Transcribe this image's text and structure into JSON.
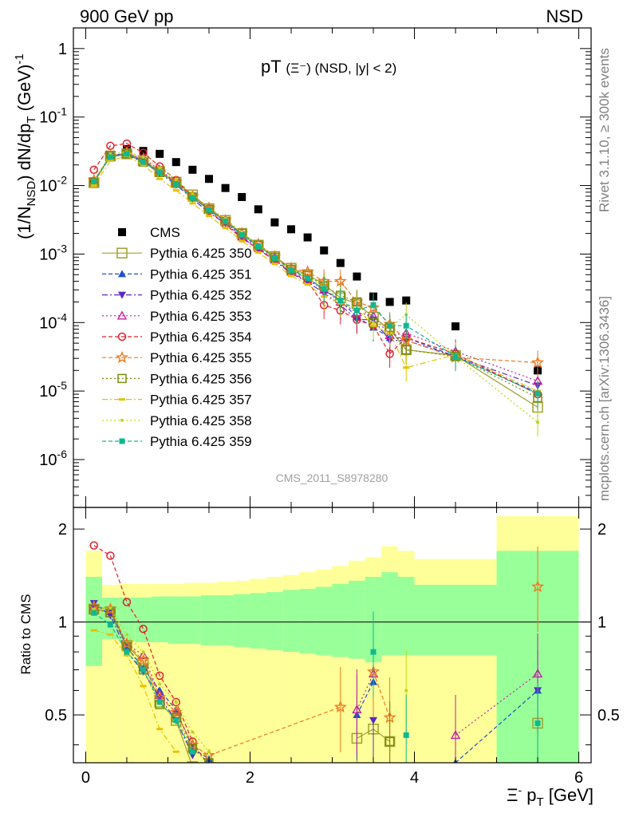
{
  "header": {
    "left": "900 GeV pp",
    "right": "NSD"
  },
  "plot_title": {
    "main": "pT",
    "sub": "(Ξ⁻) (NSD, |y| < 2)"
  },
  "side_labels": {
    "rivet": "Rivet 3.1.10, ≥ 300k events",
    "mcplots": "mcplots.cern.ch [arXiv:1306.3436]"
  },
  "watermark": "CMS_2011_S8978280",
  "ratio_ylabel": "Ratio to CMS",
  "xlabel": "Ξ⁻ p_T [GeV]",
  "ylabel": "(1/N_NSD) dN/dp_T (GeV)⁻¹",
  "y_ticks_main": [
    "1",
    "10⁻¹",
    "10⁻²",
    "10⁻³",
    "10⁻⁴",
    "10⁻⁵",
    "10⁻⁶"
  ],
  "x_ticks": [
    "0",
    "2",
    "4",
    "6"
  ],
  "ratio_ticks": [
    "0.5",
    "1",
    "2"
  ],
  "colors": {
    "yellow_band": "#ffff99",
    "green_band": "#99ff99",
    "data": "#000000"
  },
  "chart_data": [
    {
      "type": "scatter",
      "panel": "main",
      "title": "pT(Ξ⁻) (NSD, |y| < 2)",
      "xlabel": "Ξ⁻ p_T [GeV]",
      "ylabel": "(1/N_NSD) dN/dp_T (GeV)⁻¹",
      "xlim": [
        -0.15,
        6.15
      ],
      "ylim": [
        2e-07,
        2
      ],
      "yscale": "log",
      "legend_position": "middle-left",
      "x": [
        0.1,
        0.3,
        0.5,
        0.7,
        0.9,
        1.1,
        1.3,
        1.5,
        1.7,
        1.9,
        2.1,
        2.3,
        2.5,
        2.7,
        2.9,
        3.1,
        3.3,
        3.5,
        3.7,
        3.9,
        4.5,
        5.5
      ],
      "series": [
        {
          "name": "CMS",
          "color": "#000000",
          "marker": "square-filled",
          "dash": "none",
          "values": [
            0.011,
            0.026,
            0.034,
            0.032,
            0.029,
            0.022,
            0.017,
            0.0125,
            0.0092,
            0.0068,
            0.0045,
            0.0029,
            0.0023,
            0.00175,
            0.00113,
            0.00074,
            0.00047,
            0.00024,
            0.0002,
            0.00021,
            8.8e-05,
            2e-05
          ]
        },
        {
          "name": "Pythia 6.425 350",
          "color": "#a0a030",
          "marker": "square-open-large",
          "dash": "solid",
          "values": [
            0.011,
            0.027,
            0.029,
            0.023,
            0.016,
            0.0112,
            0.0073,
            0.0046,
            0.0031,
            0.002,
            0.00135,
            0.00092,
            0.00062,
            0.0005,
            0.00036,
            0.00023,
            0.00019,
            0.00012,
            8e-05,
            4e-05,
            3.3e-05,
            5.8e-06
          ]
        },
        {
          "name": "Pythia 6.425 351",
          "color": "#1f50c8",
          "marker": "triangle-up",
          "dash": "dashed",
          "values": [
            0.0115,
            0.028,
            0.029,
            0.023,
            0.016,
            0.0108,
            0.0068,
            0.0044,
            0.003,
            0.0019,
            0.0013,
            0.0009,
            0.0006,
            0.00045,
            0.0003,
            0.00021,
            0.00012,
            8.5e-05,
            6e-05,
            6e-05,
            3.2e-05,
            9.5e-06
          ]
        },
        {
          "name": "Pythia 6.425 352",
          "color": "#5a28c8",
          "marker": "triangle-down",
          "dash": "dashdot",
          "values": [
            0.0118,
            0.027,
            0.028,
            0.022,
            0.0152,
            0.0102,
            0.0064,
            0.004,
            0.0028,
            0.00175,
            0.00118,
            0.0008,
            0.00052,
            0.00039,
            0.00027,
            0.00018,
            0.00011,
            0.00011,
            5.5e-05,
            5.5e-05,
            3.2e-05,
            1.2e-05
          ]
        },
        {
          "name": "Pythia 6.425 353",
          "color": "#c020a0",
          "marker": "triangle-open",
          "dash": "dotted",
          "values": [
            0.0112,
            0.0265,
            0.029,
            0.025,
            0.017,
            0.0113,
            0.0069,
            0.0046,
            0.0029,
            0.0018,
            0.00123,
            0.00083,
            0.00055,
            0.00042,
            0.0003,
            0.0002,
            0.00014,
            0.000125,
            6.5e-05,
            7e-05,
            3.8e-05,
            1.4e-05
          ]
        },
        {
          "name": "Pythia 6.425 354",
          "color": "#e0202a",
          "marker": "circle-open",
          "dash": "dashed",
          "values": [
            0.017,
            0.038,
            0.041,
            0.03,
            0.019,
            0.012,
            0.007,
            0.0043,
            0.0027,
            0.0017,
            0.00118,
            0.00082,
            0.00054,
            0.0004,
            0.00018,
            0.00015,
            0.00011,
            9e-05,
            3.5e-05,
            6e-05,
            3.5e-05,
            9e-06
          ]
        },
        {
          "name": "Pythia 6.425 355",
          "color": "#f07820",
          "marker": "star-open",
          "dash": "dashed",
          "values": [
            0.012,
            0.027,
            0.03,
            0.024,
            0.016,
            0.0112,
            0.007,
            0.0047,
            0.0031,
            0.002,
            0.0014,
            0.00092,
            0.00062,
            0.00055,
            0.0004,
            0.0004,
            0.0002,
            0.000165,
            9.5e-05,
            5.5e-05,
            3.1e-05,
            2.6e-05
          ]
        },
        {
          "name": "Pythia 6.425 356",
          "color": "#7a8c10",
          "marker": "square-open",
          "dash": "dotted",
          "values": [
            0.0112,
            0.027,
            0.029,
            0.022,
            0.0155,
            0.0108,
            0.0068,
            0.0045,
            0.003,
            0.002,
            0.00135,
            0.0009,
            0.0006,
            0.00049,
            0.00034,
            0.00025,
            0.0002,
            0.0001,
            8.5e-05,
            4e-05,
            3.2e-05,
            8e-06
          ]
        },
        {
          "name": "Pythia 6.425 357",
          "color": "#e8c000",
          "marker": "dash",
          "dash": "dashdot",
          "values": [
            0.01,
            0.023,
            0.027,
            0.02,
            0.0125,
            0.0085,
            0.0055,
            0.0036,
            0.0024,
            0.00155,
            0.00105,
            0.00072,
            0.00048,
            0.00036,
            0.00024,
            0.00019,
            0.00016,
            9e-05,
            7e-05,
            2.2e-05,
            3.4e-05,
            1e-05
          ]
        },
        {
          "name": "Pythia 6.425 358",
          "color": "#b8d818",
          "marker": "dot",
          "dash": "dotted",
          "values": [
            0.0115,
            0.029,
            0.031,
            0.026,
            0.018,
            0.0122,
            0.0075,
            0.0047,
            0.0033,
            0.00205,
            0.00135,
            0.0009,
            0.00062,
            0.00045,
            0.00033,
            0.00022,
            0.00015,
            0.0001,
            8.5e-05,
            0.00013,
            3.2e-05,
            3.5e-06
          ]
        },
        {
          "name": "Pythia 6.425 359",
          "color": "#10b890",
          "marker": "square-small",
          "dash": "dashed",
          "values": [
            0.0115,
            0.026,
            0.029,
            0.022,
            0.0155,
            0.0105,
            0.0066,
            0.0044,
            0.003,
            0.0019,
            0.0013,
            0.00088,
            0.00058,
            0.00044,
            0.00031,
            0.00021,
            0.00015,
            0.00018,
            9e-05,
            9e-05,
            3.2e-05,
            9.2e-06
          ]
        }
      ]
    },
    {
      "type": "line",
      "panel": "ratio",
      "ylabel": "Ratio to CMS",
      "xlabel": "Ξ⁻ p_T [GeV]",
      "xlim": [
        -0.15,
        6.15
      ],
      "ylim": [
        0.35,
        2.35
      ],
      "yscale": "log",
      "bands": {
        "x_edges": [
          0,
          0.2,
          0.4,
          0.6,
          0.8,
          1.0,
          1.2,
          1.4,
          1.6,
          1.8,
          2.0,
          2.2,
          2.4,
          2.6,
          2.8,
          3.0,
          3.2,
          3.4,
          3.6,
          3.8,
          4.0,
          5.0,
          6.0
        ],
        "yellow_lo": [
          0.35,
          0.35,
          0.35,
          0.35,
          0.35,
          0.35,
          0.35,
          0.35,
          0.35,
          0.35,
          0.35,
          0.35,
          0.35,
          0.35,
          0.35,
          0.35,
          0.35,
          0.35,
          0.35,
          0.35,
          0.35,
          0.35
        ],
        "yellow_hi": [
          1.7,
          1.32,
          1.33,
          1.33,
          1.33,
          1.33,
          1.34,
          1.34,
          1.35,
          1.36,
          1.38,
          1.4,
          1.42,
          1.45,
          1.48,
          1.52,
          1.58,
          1.62,
          1.76,
          1.7,
          1.6,
          2.2
        ],
        "green_lo": [
          0.72,
          0.88,
          0.87,
          0.86,
          0.86,
          0.85,
          0.85,
          0.84,
          0.84,
          0.83,
          0.82,
          0.81,
          0.8,
          0.79,
          0.78,
          0.77,
          0.76,
          0.74,
          0.78,
          0.78,
          0.78,
          0.35
        ],
        "green_hi": [
          1.4,
          1.2,
          1.2,
          1.2,
          1.21,
          1.21,
          1.21,
          1.22,
          1.22,
          1.23,
          1.24,
          1.25,
          1.27,
          1.28,
          1.3,
          1.33,
          1.36,
          1.4,
          1.45,
          1.4,
          1.32,
          1.7
        ]
      },
      "x": [
        0.1,
        0.3,
        0.5,
        0.7,
        0.9,
        1.1,
        1.3,
        1.5,
        3.1,
        3.3,
        3.5,
        3.7,
        3.9,
        4.5,
        5.5
      ],
      "series": [
        {
          "name": "Pythia 6.425 350",
          "color": "#a0a030",
          "values": [
            1.1,
            1.08,
            0.84,
            0.74,
            0.55,
            0.48,
            0.34,
            null,
            null,
            0.42,
            0.45,
            0.41,
            null,
            null,
            0.47
          ]
        },
        {
          "name": "Pythia 6.425 351",
          "color": "#1f50c8",
          "values": [
            1.14,
            1.08,
            0.83,
            0.71,
            0.6,
            0.52,
            0.39,
            0.36,
            null,
            0.5,
            0.64,
            null,
            null,
            0.35,
            0.6
          ]
        },
        {
          "name": "Pythia 6.425 352",
          "color": "#5a28c8",
          "values": [
            1.15,
            1.05,
            0.8,
            0.69,
            0.57,
            0.48,
            0.37,
            null,
            null,
            null,
            0.48,
            null,
            null,
            null,
            0.6
          ]
        },
        {
          "name": "Pythia 6.425 353",
          "color": "#c020a0",
          "values": [
            1.12,
            1.1,
            0.85,
            0.78,
            0.58,
            0.51,
            0.4,
            null,
            null,
            0.52,
            0.68,
            null,
            null,
            0.43,
            0.68
          ]
        },
        {
          "name": "Pythia 6.425 354",
          "color": "#e0202a",
          "values": [
            1.77,
            1.64,
            1.16,
            0.95,
            0.67,
            0.55,
            0.41,
            0.34,
            null,
            null,
            null,
            null,
            null,
            null,
            null
          ]
        },
        {
          "name": "Pythia 6.425 355",
          "color": "#f07820",
          "values": [
            1.12,
            1.1,
            0.85,
            0.75,
            0.57,
            0.51,
            0.4,
            0.37,
            0.53,
            null,
            0.69,
            0.49,
            null,
            null,
            1.3
          ]
        },
        {
          "name": "Pythia 6.425 356",
          "color": "#7a8c10",
          "values": [
            1.1,
            1.07,
            0.83,
            0.7,
            0.54,
            0.49,
            0.39,
            0.35,
            null,
            null,
            null,
            0.41,
            null,
            null,
            null
          ]
        },
        {
          "name": "Pythia 6.425 357",
          "color": "#e8c000",
          "values": [
            0.94,
            0.91,
            0.78,
            0.62,
            0.45,
            0.38,
            null,
            null,
            null,
            null,
            null,
            null,
            null,
            null,
            null
          ]
        },
        {
          "name": "Pythia 6.425 358",
          "color": "#b8d818",
          "values": [
            1.1,
            1.11,
            0.91,
            0.8,
            0.63,
            0.55,
            0.44,
            0.38,
            null,
            null,
            null,
            null,
            0.6,
            null,
            null
          ]
        },
        {
          "name": "Pythia 6.425 359",
          "color": "#10b890",
          "values": [
            1.07,
            0.98,
            0.8,
            0.7,
            0.55,
            0.48,
            0.38,
            null,
            null,
            null,
            0.8,
            null,
            0.43,
            null,
            0.47
          ]
        }
      ]
    }
  ]
}
